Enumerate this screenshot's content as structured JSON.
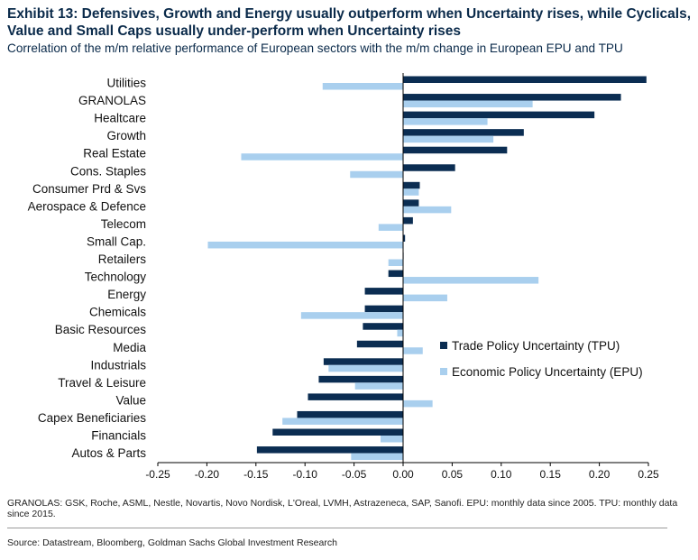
{
  "title": "Exhibit 13: Defensives, Growth and Energy usually outperform when Uncertainty rises, while Cyclicals, Value and Small Caps usually under-perform when Uncertainty rises",
  "subtitle": "Correlation of the m/m relative performance of European sectors with the m/m change in European EPU and TPU",
  "footnote": "GRANOLAS: GSK, Roche, ASML, Nestle, Novartis, Novo Nordisk, L'Oreal, LVMH, Astrazeneca, SAP, Sanofi. EPU: monthly data since 2005. TPU: monthly data since 2015.",
  "source": "Source: Datastream, Bloomberg, Goldman Sachs Global Investment Research",
  "colors": {
    "tpu": "#0b2d52",
    "epu": "#a9cfee",
    "axis": "#000000"
  },
  "chart_data": {
    "type": "bar",
    "orientation": "horizontal",
    "categories": [
      "Utilities",
      "GRANOLAS",
      "Healtcare",
      "Growth",
      "Real Estate",
      "Cons. Staples",
      "Consumer Prd & Svs",
      "Aerospace & Defence",
      "Telecom",
      "Small Cap.",
      "Retailers",
      "Technology",
      "Energy",
      "Chemicals",
      "Basic Resources",
      "Media",
      "Industrials",
      "Travel & Leisure",
      "Value",
      "Capex Beneficiaries",
      "Financials",
      "Autos & Parts"
    ],
    "series": [
      {
        "name": "Trade Policy Uncertainty (TPU)",
        "values": [
          0.248,
          0.222,
          0.195,
          0.123,
          0.106,
          0.053,
          0.017,
          0.016,
          0.01,
          0.002,
          0.0,
          -0.015,
          -0.039,
          -0.039,
          -0.041,
          -0.047,
          -0.081,
          -0.086,
          -0.097,
          -0.108,
          -0.133,
          -0.149
        ]
      },
      {
        "name": "Economic Policy Uncertainty (EPU)",
        "values": [
          -0.082,
          0.132,
          0.086,
          0.092,
          -0.165,
          -0.054,
          0.016,
          0.049,
          -0.025,
          -0.199,
          -0.015,
          0.138,
          0.045,
          -0.104,
          -0.006,
          0.02,
          -0.076,
          -0.049,
          0.03,
          -0.123,
          -0.023,
          -0.053
        ]
      }
    ],
    "xlim": [
      -0.25,
      0.25
    ],
    "x_ticks": [
      "-0.25",
      "-0.20",
      "-0.15",
      "-0.10",
      "-0.05",
      "0.00",
      "0.05",
      "0.10",
      "0.15",
      "0.20",
      "0.25"
    ],
    "tick_values": [
      -0.25,
      -0.2,
      -0.15,
      -0.1,
      -0.05,
      0.0,
      0.05,
      0.1,
      0.15,
      0.2,
      0.25
    ],
    "legend_position": "right-middle",
    "grid": false
  }
}
